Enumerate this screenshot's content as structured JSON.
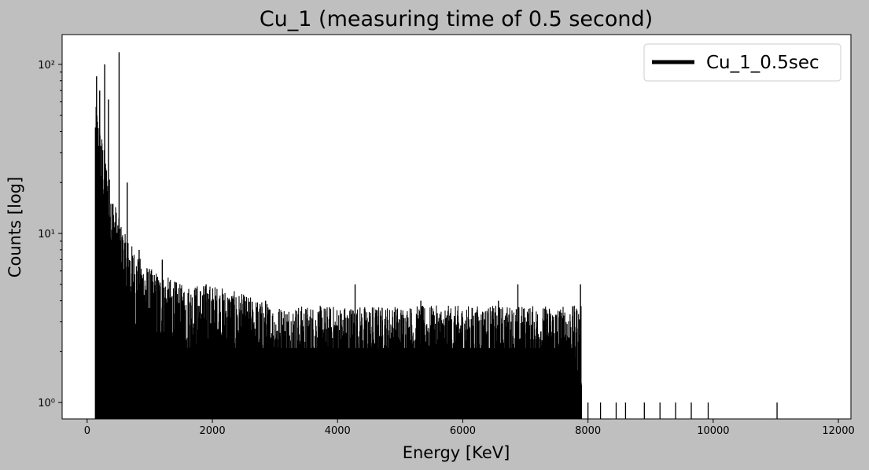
{
  "chart_data": {
    "type": "line",
    "title": "Cu_1 (measuring time of 0.5 second)",
    "xlabel": "Energy [KeV]",
    "ylabel": "Counts [log]",
    "xlim": [
      -400,
      12200
    ],
    "ylim": [
      0.8,
      150
    ],
    "yscale": "log",
    "x_ticks": [
      0,
      2000,
      4000,
      6000,
      8000,
      10000,
      12000
    ],
    "x_tick_labels": [
      "0",
      "2000",
      "4000",
      "6000",
      "8000",
      "10000",
      "12000"
    ],
    "y_ticks": [
      1,
      10,
      100
    ],
    "y_tick_labels": [
      "10⁰",
      "10¹",
      "10²"
    ],
    "grid": false,
    "legend": {
      "position": "top-right",
      "entries": [
        "Cu_1_0.5sec"
      ]
    },
    "series": [
      {
        "name": "Cu_1_0.5sec",
        "color": "#000000",
        "style": "dense vertical spikes (histogram-like spectrum)",
        "envelope": [
          {
            "x": 150,
            "y": 45
          },
          {
            "x": 200,
            "y": 35
          },
          {
            "x": 300,
            "y": 22
          },
          {
            "x": 400,
            "y": 14
          },
          {
            "x": 500,
            "y": 10
          },
          {
            "x": 600,
            "y": 8
          },
          {
            "x": 800,
            "y": 6
          },
          {
            "x": 1000,
            "y": 5
          },
          {
            "x": 1500,
            "y": 4
          },
          {
            "x": 2000,
            "y": 4
          },
          {
            "x": 3000,
            "y": 3
          },
          {
            "x": 4000,
            "y": 3
          },
          {
            "x": 5000,
            "y": 3
          },
          {
            "x": 6000,
            "y": 3
          },
          {
            "x": 7000,
            "y": 3
          },
          {
            "x": 7800,
            "y": 3
          }
        ],
        "peaks": [
          {
            "x": 150,
            "y": 85
          },
          {
            "x": 200,
            "y": 70
          },
          {
            "x": 280,
            "y": 100
          },
          {
            "x": 340,
            "y": 62
          },
          {
            "x": 510,
            "y": 118
          },
          {
            "x": 640,
            "y": 20
          },
          {
            "x": 830,
            "y": 8
          },
          {
            "x": 1200,
            "y": 7
          },
          {
            "x": 1900,
            "y": 5
          },
          {
            "x": 2850,
            "y": 4
          },
          {
            "x": 4280,
            "y": 5
          },
          {
            "x": 5330,
            "y": 4
          },
          {
            "x": 6570,
            "y": 4
          },
          {
            "x": 6880,
            "y": 5
          },
          {
            "x": 7880,
            "y": 5
          }
        ],
        "tail_counts": [
          {
            "x": 8000,
            "y": 1
          },
          {
            "x": 8200,
            "y": 1
          },
          {
            "x": 8450,
            "y": 1
          },
          {
            "x": 8600,
            "y": 1
          },
          {
            "x": 8900,
            "y": 1
          },
          {
            "x": 9150,
            "y": 1
          },
          {
            "x": 9400,
            "y": 1
          },
          {
            "x": 9650,
            "y": 1
          },
          {
            "x": 9920,
            "y": 1
          },
          {
            "x": 11020,
            "y": 1
          }
        ]
      }
    ]
  }
}
